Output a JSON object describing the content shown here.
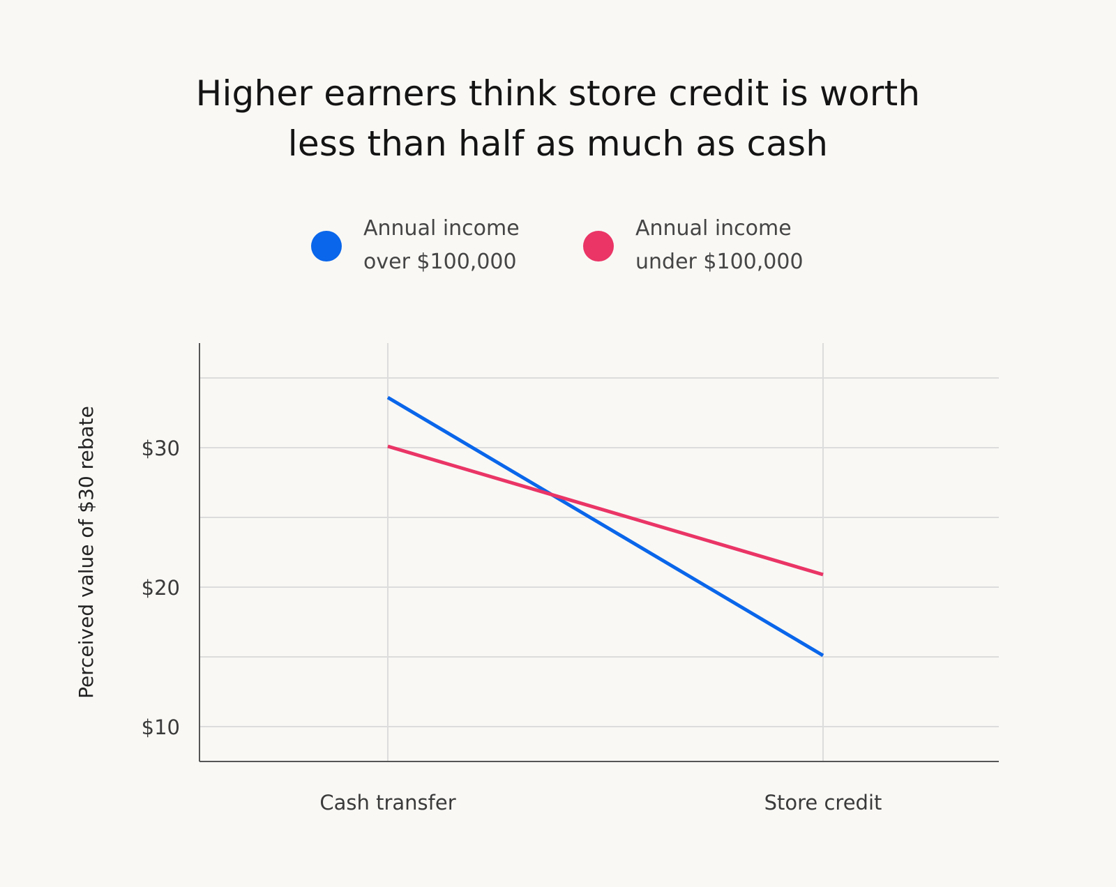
{
  "chart_data": {
    "type": "line",
    "title": "Higher earners think store credit is worth less than half as much as cash",
    "title_lines": [
      "Higher earners think store credit is worth",
      "less than half as much as cash"
    ],
    "ylabel": "Perceived value of $30 rebate",
    "xlabel": "",
    "categories": [
      "Cash transfer",
      "Store credit"
    ],
    "ylim": [
      7.5,
      37.5
    ],
    "yticks": [
      {
        "value": 10,
        "label": "$10"
      },
      {
        "value": 20,
        "label": "$20"
      },
      {
        "value": 30,
        "label": "$30"
      }
    ],
    "gridlines": [
      10,
      15,
      20,
      25,
      30,
      35
    ],
    "grid": true,
    "legend_position": "top",
    "series": [
      {
        "name_lines": [
          "Annual income",
          "over $100,000"
        ],
        "name": "Annual income over $100,000",
        "color": "#0a66ea",
        "values": [
          33.6,
          15.1
        ]
      },
      {
        "name_lines": [
          "Annual income",
          "under $100,000"
        ],
        "name": "Annual income under $100,000",
        "color": "#ea3566",
        "values": [
          30.1,
          20.9
        ]
      }
    ]
  }
}
